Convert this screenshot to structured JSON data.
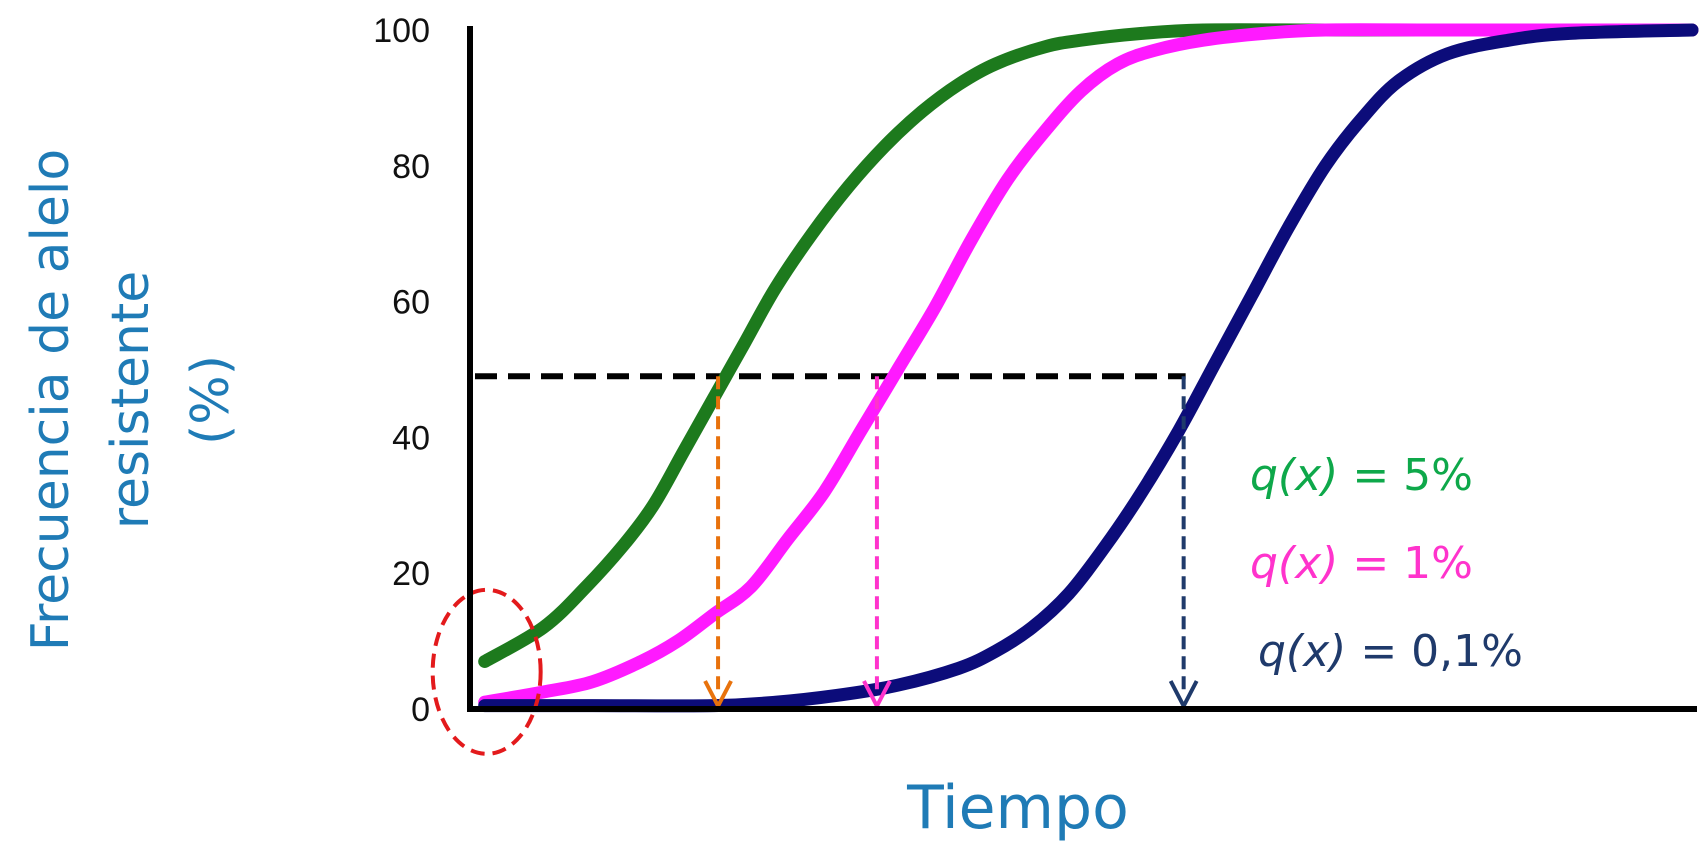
{
  "chart_data": {
    "type": "line",
    "title": "",
    "xlabel": "Tiempo",
    "ylabel_lines": [
      "Frecuencia de alelo",
      "resistente",
      "(%)"
    ],
    "ylim": [
      0,
      100
    ],
    "yticks": [
      "0",
      "20",
      "40",
      "60",
      "80",
      "100"
    ],
    "xlim": [
      0,
      1
    ],
    "grid": false,
    "legend_position": "right",
    "threshold": {
      "y": 49,
      "color": "#000000",
      "dashed": true
    },
    "series": [
      {
        "legend_label": "q(x) = 5%",
        "legend_prefix": "q(x)",
        "legend_value": "= 5%",
        "color": "#1d7a1d",
        "legend_color": "#0ea84a",
        "x": [
          0.012,
          0.06,
          0.095,
          0.125,
          0.15,
          0.175,
          0.2,
          0.225,
          0.25,
          0.28,
          0.31,
          0.34,
          0.37,
          0.4,
          0.43,
          0.47,
          0.5,
          0.55,
          0.6,
          0.7,
          0.8,
          1.0
        ],
        "y": [
          7,
          12,
          18,
          24,
          30,
          38,
          46,
          54,
          62,
          70,
          77,
          83,
          88,
          92,
          95,
          97.5,
          98.5,
          99.5,
          100,
          100,
          100,
          100
        ],
        "drop_arrow": {
          "x": 0.203,
          "color": "#e8720c"
        }
      },
      {
        "legend_label": "q(x) = 1%",
        "legend_prefix": "q(x)",
        "legend_value": "= 1%",
        "color": "#ff1aff",
        "legend_color": "#ff33cc",
        "x": [
          0.012,
          0.06,
          0.1,
          0.14,
          0.17,
          0.2,
          0.23,
          0.26,
          0.29,
          0.32,
          0.35,
          0.38,
          0.41,
          0.44,
          0.47,
          0.5,
          0.53,
          0.56,
          0.6,
          0.65,
          0.7,
          0.8,
          1.0
        ],
        "y": [
          1,
          2.5,
          4,
          7,
          10,
          14,
          18,
          25,
          32,
          41,
          50,
          59,
          69,
          78,
          85,
          91,
          95,
          97,
          98.5,
          99.5,
          100,
          100,
          100
        ],
        "drop_arrow": {
          "x": 0.333,
          "color": "#ff33cc"
        }
      },
      {
        "legend_label": "q(x) = 0,1%",
        "legend_prefix": "q(x)",
        "legend_value": "= 0,1%",
        "color": "#0c0c7a",
        "legend_color": "#1f3a6b",
        "x": [
          0.012,
          0.1,
          0.2,
          0.25,
          0.3,
          0.35,
          0.4,
          0.43,
          0.46,
          0.49,
          0.52,
          0.55,
          0.58,
          0.61,
          0.64,
          0.67,
          0.7,
          0.73,
          0.76,
          0.8,
          0.85,
          0.9,
          1.0
        ],
        "y": [
          0.5,
          0.5,
          0.5,
          1,
          2,
          3.5,
          6,
          8.5,
          12,
          17,
          24,
          32,
          41,
          51,
          61,
          71,
          80,
          87,
          92.5,
          96.5,
          98.5,
          99.5,
          100
        ],
        "drop_arrow": {
          "x": 0.584,
          "color": "#1f3a6b"
        }
      }
    ],
    "annotations": [
      {
        "shape": "dashed-ellipse",
        "color": "#e31a1c",
        "x": 0.012,
        "y": 4
      }
    ]
  }
}
